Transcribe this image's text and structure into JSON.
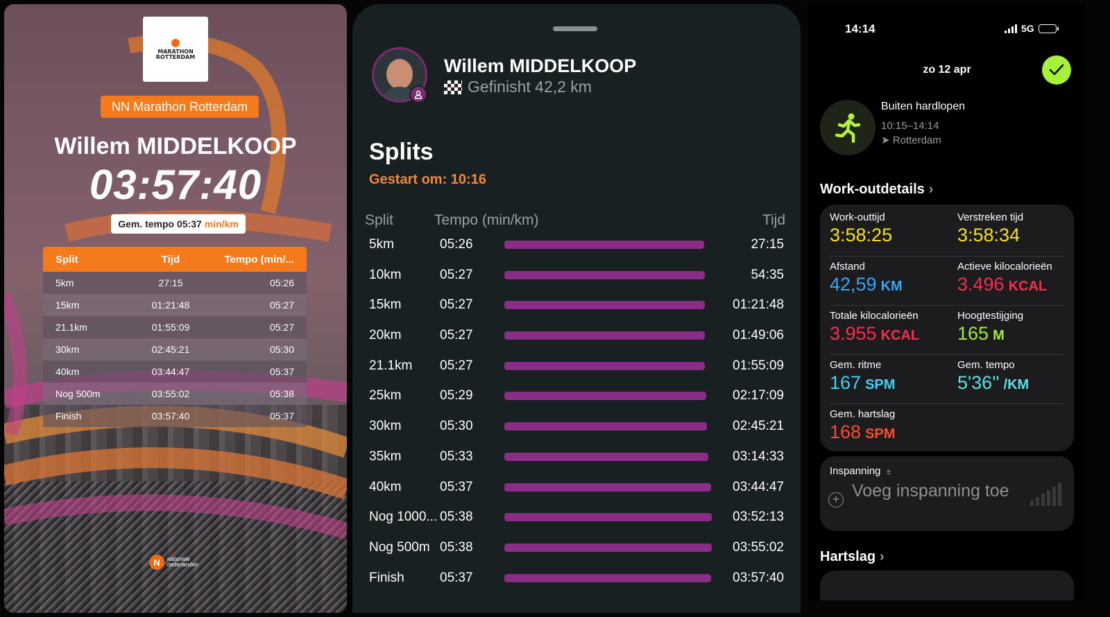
{
  "poster": {
    "logo_text": [
      "NN",
      "MARATHON",
      "ROTTERDAM"
    ],
    "race_name": "NN Marathon Rotterdam",
    "runner_name": "Willem MIDDELKOOP",
    "finish_time": "03:57:40",
    "avg_pace_label": "Gem. tempo 05:37",
    "avg_pace_unit": "min/km",
    "table_headers": {
      "split": "Split",
      "tijd": "Tijd",
      "tempo": "Tempo (min/..."
    },
    "rows": [
      {
        "split": "5km",
        "tijd": "27:15",
        "tempo": "05:26"
      },
      {
        "split": "15km",
        "tijd": "01:21:48",
        "tempo": "05:27"
      },
      {
        "split": "21.1km",
        "tijd": "01:55:09",
        "tempo": "05:27"
      },
      {
        "split": "30km",
        "tijd": "02:45:21",
        "tempo": "05:30"
      },
      {
        "split": "40km",
        "tijd": "03:44:47",
        "tempo": "05:37"
      },
      {
        "split": "Nog 500m",
        "tijd": "03:55:02",
        "tempo": "05:38"
      },
      {
        "split": "Finish",
        "tijd": "03:57:40",
        "tempo": "05:37"
      }
    ],
    "sponsor_mark": "N",
    "sponsor_text": [
      "nationale",
      "nederlanden"
    ],
    "accent_color": "#f47a1b"
  },
  "splits_sheet": {
    "runner_name": "Willem MIDDELKOOP",
    "status": "Gefinisht 42,2 km",
    "title": "Splits",
    "started_at": "Gestart om: 10:16",
    "headers": {
      "split": "Split",
      "tempo": "Tempo (min/km)",
      "tijd": "Tijd"
    },
    "bar_color": "#8a2d86",
    "rows": [
      {
        "split": "5km",
        "tempo": "05:26",
        "tijd": "27:15"
      },
      {
        "split": "10km",
        "tempo": "05:27",
        "tijd": "54:35"
      },
      {
        "split": "15km",
        "tempo": "05:27",
        "tijd": "01:21:48"
      },
      {
        "split": "20km",
        "tempo": "05:27",
        "tijd": "01:49:06"
      },
      {
        "split": "21.1km",
        "tempo": "05:27",
        "tijd": "01:55:09"
      },
      {
        "split": "25km",
        "tempo": "05:29",
        "tijd": "02:17:09"
      },
      {
        "split": "30km",
        "tempo": "05:30",
        "tijd": "02:45:21"
      },
      {
        "split": "35km",
        "tempo": "05:33",
        "tijd": "03:14:33"
      },
      {
        "split": "40km",
        "tempo": "05:37",
        "tijd": "03:44:47"
      },
      {
        "split": "Nog 1000...",
        "tempo": "05:38",
        "tijd": "03:52:13"
      },
      {
        "split": "Nog 500m",
        "tempo": "05:38",
        "tijd": "03:55:02"
      },
      {
        "split": "Finish",
        "tempo": "05:37",
        "tijd": "03:57:40"
      }
    ]
  },
  "fitness": {
    "status_bar": {
      "time": "14:14",
      "network": "5G"
    },
    "date": "zo 12 apr",
    "activity": {
      "title": "Buiten hardlopen",
      "time_range": "10:15–14:14",
      "location": "Rotterdam"
    },
    "details_title": "Work-outdetails",
    "metrics": [
      {
        "label": "Work-outtijd",
        "value": "3:58:25",
        "unit": "",
        "color": "#f5e11a"
      },
      {
        "label": "Verstreken tijd",
        "value": "3:58:34",
        "unit": "",
        "color": "#f5e11a"
      },
      {
        "label": "Afstand",
        "value": "42,59",
        "unit": "KM",
        "color": "#3aa7f5"
      },
      {
        "label": "Actieve kilocalorieën",
        "value": "3.496",
        "unit": "KCAL",
        "color": "#fa2d4f"
      },
      {
        "label": "Totale kilocalorieën",
        "value": "3.955",
        "unit": "KCAL",
        "color": "#fa2d4f"
      },
      {
        "label": "Hoogtestijging",
        "value": "165",
        "unit": "M",
        "color": "#a4ea3b"
      },
      {
        "label": "Gem. ritme",
        "value": "167",
        "unit": "SPM",
        "color": "#3fd1f5"
      },
      {
        "label": "Gem. tempo",
        "value": "5'36''",
        "unit": "/KM",
        "color": "#5de0e6"
      },
      {
        "label": "Gem. hartslag",
        "value": "168",
        "unit": "SPM",
        "color": "#ff4a2e"
      }
    ],
    "effort": {
      "label": "Inspanning",
      "label_suffix": "±",
      "add_text": "Voeg inspanning toe"
    },
    "heart_rate_title": "Hartslag",
    "accent_check_color": "#a6f23a"
  }
}
